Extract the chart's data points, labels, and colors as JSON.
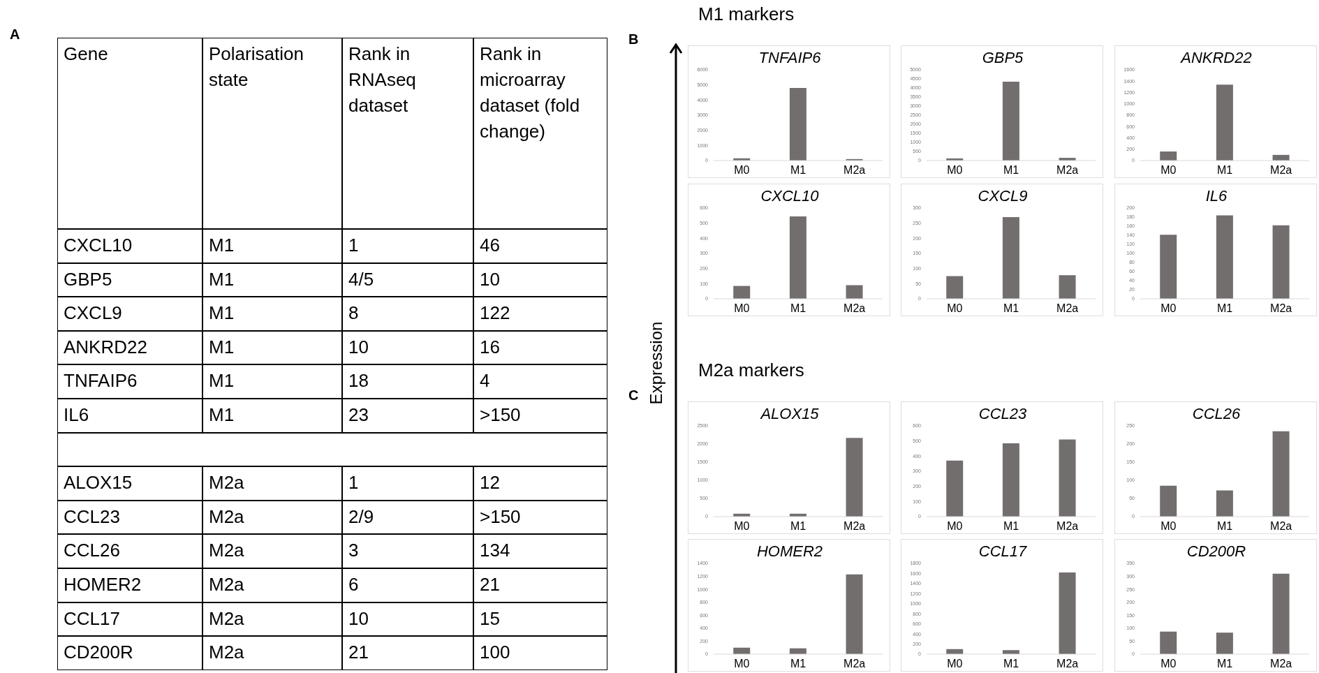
{
  "chart_data": [
    {
      "type": "other",
      "title": "A",
      "annotations": [
        "Gene",
        "Polarisation state",
        "Rank in RNAseq dataset",
        "Rank in microarray dataset (fold change)",
        "CXCL10",
        "M1",
        "1",
        "46",
        "GBP5",
        "M1",
        "4/5",
        "10",
        "CXCL9",
        "M1",
        "8",
        "122",
        "ANKRD22",
        "M1",
        "10",
        "16",
        "TNFAIP6",
        "M1",
        "18",
        "4",
        "IL6",
        "M1",
        "23",
        ">150",
        "ALOX15",
        "M2a",
        "1",
        "12",
        "CCL23",
        "M2a",
        "2/9",
        ">150",
        "CCL26",
        "M2a",
        "3",
        "134",
        "HOMER2",
        "M2a",
        "6",
        "21",
        "CCL17",
        "M2a",
        "10",
        "15",
        "CD200R",
        "M2a",
        "21",
        "100"
      ]
    },
    {
      "type": "bar",
      "title": "TNFAIP6",
      "annotations": [
        "B",
        "M1 markers",
        "Expression"
      ],
      "categories": [
        "M0",
        "M1",
        "M2a"
      ],
      "values": [
        150,
        4800,
        100
      ],
      "color": "#726e6d",
      "ylim": [
        0,
        6000
      ],
      "yticks": [
        0,
        1000,
        2000,
        3000,
        4000,
        5000,
        6000
      ]
    },
    {
      "type": "bar",
      "title": "GBP5",
      "categories": [
        "M0",
        "M1",
        "M2a"
      ],
      "values": [
        120,
        4350,
        150
      ],
      "color": "#726e6d",
      "ylim": [
        0,
        5000
      ],
      "yticks": [
        0,
        500,
        1000,
        1500,
        2000,
        2500,
        3000,
        3500,
        4000,
        4500,
        5000
      ]
    },
    {
      "type": "bar",
      "title": "ANKRD22",
      "categories": [
        "M0",
        "M1",
        "M2a"
      ],
      "values": [
        160,
        1340,
        100
      ],
      "color": "#726e6d",
      "ylim": [
        0,
        1600
      ],
      "yticks": [
        0,
        200,
        400,
        600,
        800,
        1000,
        1200,
        1400,
        1600
      ]
    },
    {
      "type": "bar",
      "title": "CXCL10",
      "categories": [
        "M0",
        "M1",
        "M2a"
      ],
      "values": [
        85,
        545,
        90
      ],
      "color": "#726e6d",
      "ylim": [
        0,
        600
      ],
      "yticks": [
        0,
        100,
        200,
        300,
        400,
        500,
        600
      ]
    },
    {
      "type": "bar",
      "title": "CXCL9",
      "categories": [
        "M0",
        "M1",
        "M2a"
      ],
      "values": [
        75,
        270,
        78
      ],
      "color": "#726e6d",
      "ylim": [
        0,
        300
      ],
      "yticks": [
        0,
        50,
        100,
        150,
        200,
        250,
        300
      ]
    },
    {
      "type": "bar",
      "title": "IL6",
      "categories": [
        "M0",
        "M1",
        "M2a"
      ],
      "values": [
        141,
        184,
        162
      ],
      "color": "#726e6d",
      "ylim": [
        0,
        200
      ],
      "yticks": [
        0,
        20,
        40,
        60,
        80,
        100,
        120,
        140,
        160,
        180,
        200
      ]
    },
    {
      "type": "bar",
      "title": "ALOX15",
      "annotations": [
        "C",
        "M2a markers"
      ],
      "categories": [
        "M0",
        "M1",
        "M2a"
      ],
      "values": [
        80,
        80,
        2170
      ],
      "color": "#726e6d",
      "ylim": [
        0,
        2500
      ],
      "yticks": [
        0,
        500,
        1000,
        1500,
        2000,
        2500
      ]
    },
    {
      "type": "bar",
      "title": "CCL23",
      "categories": [
        "M0",
        "M1",
        "M2a"
      ],
      "values": [
        370,
        485,
        510
      ],
      "color": "#726e6d",
      "ylim": [
        0,
        600
      ],
      "yticks": [
        0,
        100,
        200,
        300,
        400,
        500,
        600
      ]
    },
    {
      "type": "bar",
      "title": "CCL26",
      "categories": [
        "M0",
        "M1",
        "M2a"
      ],
      "values": [
        85,
        72,
        235
      ],
      "color": "#726e6d",
      "ylim": [
        0,
        250
      ],
      "yticks": [
        0,
        50,
        100,
        150,
        200,
        250
      ]
    },
    {
      "type": "bar",
      "title": "HOMER2",
      "categories": [
        "M0",
        "M1",
        "M2a"
      ],
      "values": [
        100,
        90,
        1230
      ],
      "color": "#726e6d",
      "ylim": [
        0,
        1400
      ],
      "yticks": [
        0,
        200,
        400,
        600,
        800,
        1000,
        1200,
        1400
      ]
    },
    {
      "type": "bar",
      "title": "CCL17",
      "categories": [
        "M0",
        "M1",
        "M2a"
      ],
      "values": [
        100,
        80,
        1620
      ],
      "color": "#726e6d",
      "ylim": [
        0,
        1800
      ],
      "yticks": [
        0,
        200,
        400,
        600,
        800,
        1000,
        1200,
        1400,
        1600,
        1800
      ]
    },
    {
      "type": "bar",
      "title": "CD200R",
      "categories": [
        "M0",
        "M1",
        "M2a"
      ],
      "values": [
        87,
        83,
        310
      ],
      "color": "#726e6d",
      "ylim": [
        0,
        350
      ],
      "yticks": [
        0,
        50,
        100,
        150,
        200,
        250,
        300,
        350
      ]
    }
  ]
}
